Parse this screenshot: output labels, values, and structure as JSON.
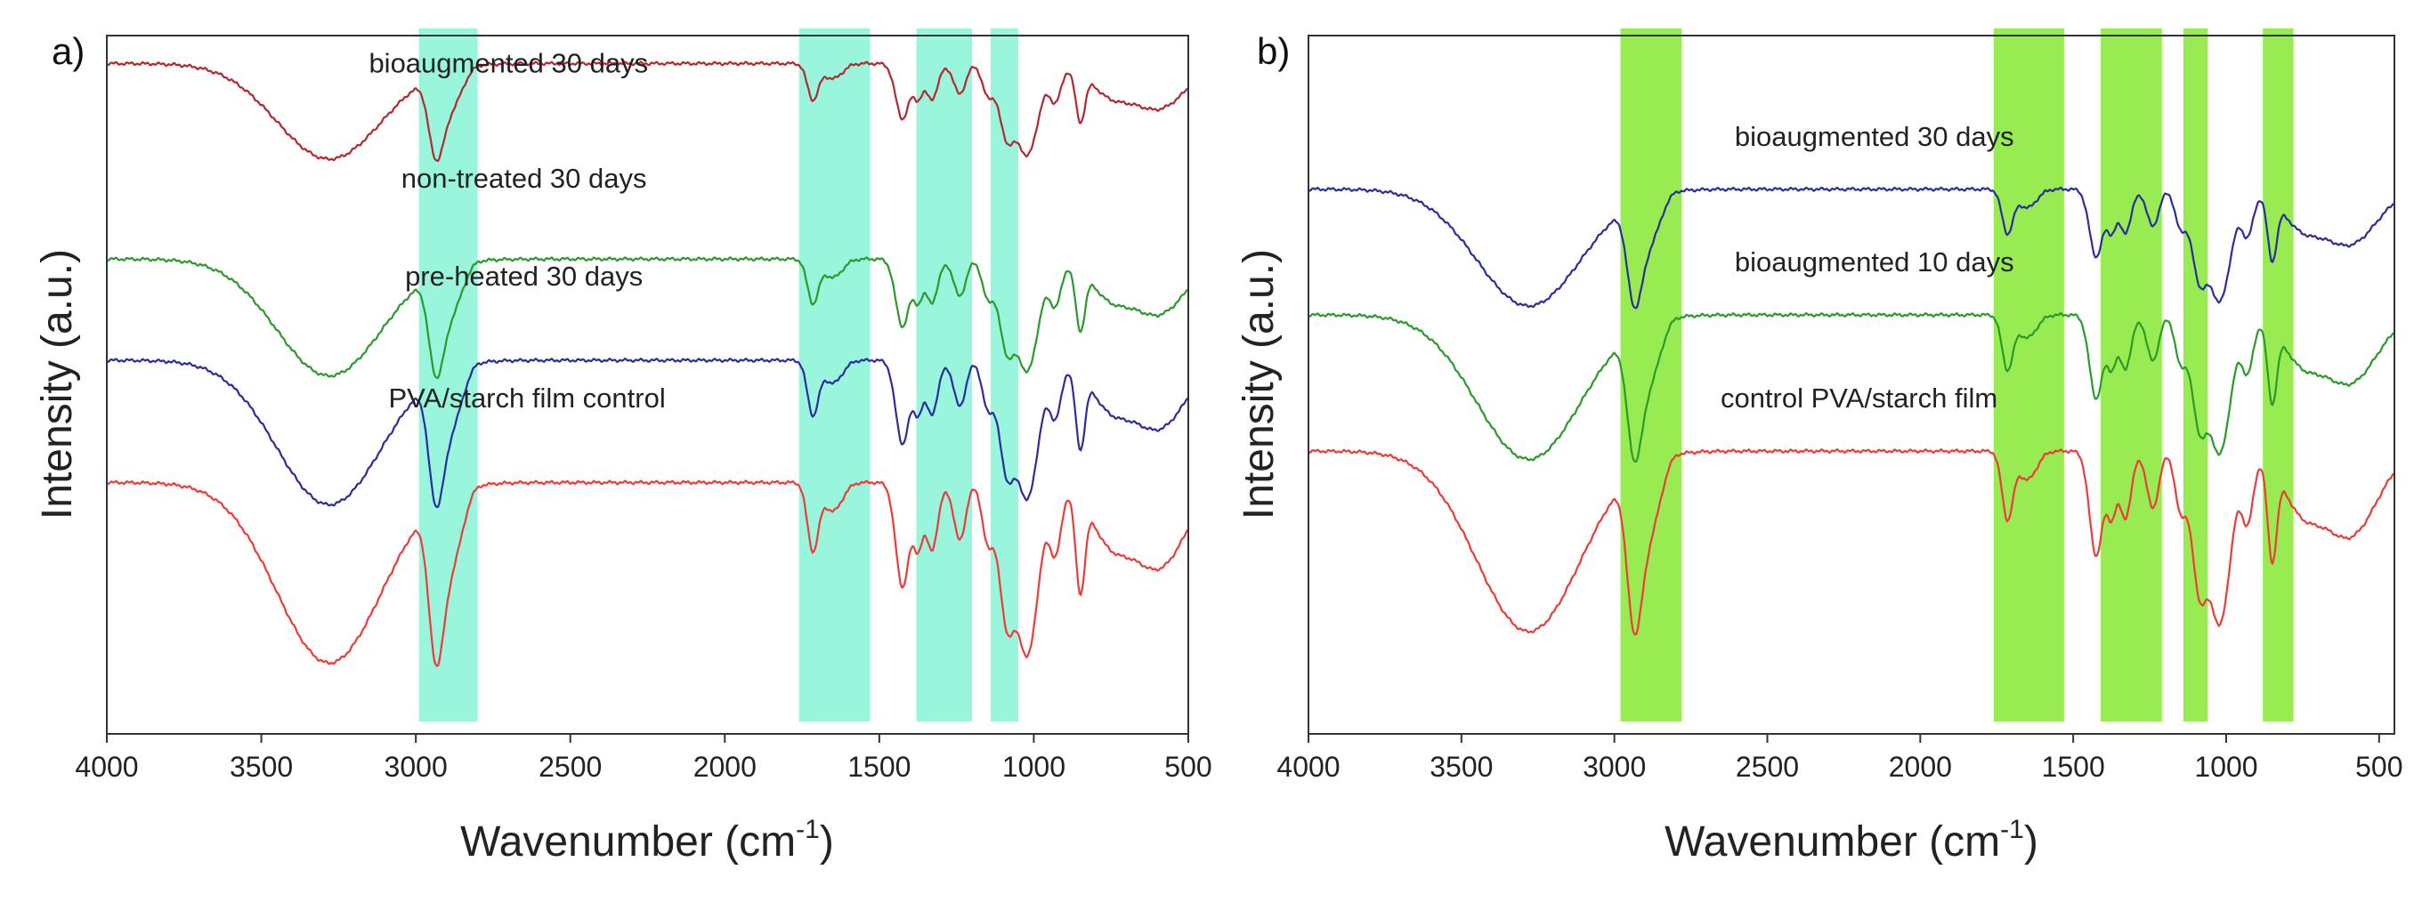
{
  "chart_data": [
    {
      "type": "line",
      "panel_label": "a)",
      "title": "",
      "xlabel": "Wavenumber (cm",
      "xlabel_sup": "-1",
      "xlabel_close": ")",
      "ylabel": "Intensity (a.u.)",
      "xlim": [
        4000,
        500
      ],
      "xticks": [
        4000,
        3500,
        3000,
        2500,
        2000,
        1500,
        1000,
        500
      ],
      "highlight_color": "#99f5dc",
      "highlight_bands": [
        [
          2990,
          2800
        ],
        [
          1760,
          1530
        ],
        [
          1380,
          1200
        ],
        [
          1140,
          1050
        ]
      ],
      "series": [
        {
          "name": "bioaugmented 30 days",
          "color": "#b5282f",
          "offset": 0.0,
          "scale": 0.45,
          "label_x": 2700,
          "label_y": 0.04
        },
        {
          "name": "non-treated 30 days",
          "color": "#2a9a2a",
          "offset": 0.28,
          "scale": 0.55,
          "label_x": 2650,
          "label_y": 0.205
        },
        {
          "name": "pre-heated 30 days",
          "color": "#2c2c9e",
          "offset": 0.425,
          "scale": 0.68,
          "label_x": 2650,
          "label_y": 0.345
        },
        {
          "name": "PVA/starch film control",
          "color": "#f03a3a",
          "offset": 0.6,
          "scale": 0.85,
          "label_x": 2640,
          "label_y": 0.52
        }
      ]
    },
    {
      "type": "line",
      "panel_label": "b)",
      "title": "",
      "xlabel": "Wavenumber (cm",
      "xlabel_sup": "-1",
      "xlabel_close": ")",
      "ylabel": "Intensity (a.u.)",
      "xlim": [
        4000,
        450
      ],
      "xticks": [
        4000,
        3500,
        3000,
        2500,
        2000,
        1500,
        1000,
        500
      ],
      "highlight_color": "#98ec52",
      "highlight_bands": [
        [
          2980,
          2780
        ],
        [
          1760,
          1530
        ],
        [
          1410,
          1210
        ],
        [
          1140,
          1060
        ],
        [
          880,
          780
        ]
      ],
      "series": [
        {
          "name": "bioaugmented 30 days",
          "color": "#2c2c9e",
          "offset": 0.18,
          "scale": 0.55,
          "label_x": 2150,
          "label_y": 0.145
        },
        {
          "name": "bioaugmented 10 days",
          "color": "#2a9a2a",
          "offset": 0.36,
          "scale": 0.68,
          "label_x": 2150,
          "label_y": 0.325
        },
        {
          "name": "control PVA/starch film",
          "color": "#f03a3a",
          "offset": 0.555,
          "scale": 0.85,
          "label_x": 2200,
          "label_y": 0.52
        }
      ]
    }
  ]
}
